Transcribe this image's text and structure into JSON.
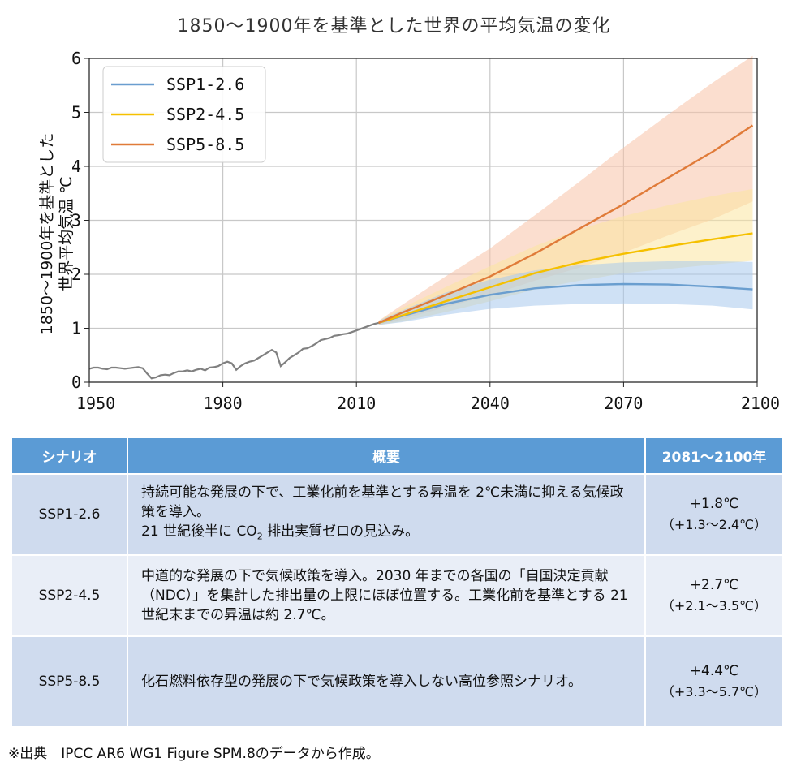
{
  "chart_data": {
    "type": "line",
    "title": "1850～1900年を基準とした世界の平均気温の変化",
    "ylabel_lines": [
      "1850～1900年を基準とした",
      "世界平均気温 ℃"
    ],
    "xlabel": "",
    "xlim": [
      1950,
      2100
    ],
    "ylim": [
      0,
      6
    ],
    "xticks": [
      1950,
      1980,
      2010,
      2040,
      2070,
      2100
    ],
    "yticks": [
      0,
      1,
      2,
      3,
      4,
      5,
      6
    ],
    "grid": true,
    "legend_position": "top-left",
    "historical": {
      "color": "#808080",
      "x": [
        1950,
        1951,
        1952,
        1953,
        1954,
        1955,
        1956,
        1957,
        1958,
        1959,
        1960,
        1961,
        1962,
        1963,
        1964,
        1965,
        1966,
        1967,
        1968,
        1969,
        1970,
        1971,
        1972,
        1973,
        1974,
        1975,
        1976,
        1977,
        1978,
        1979,
        1980,
        1981,
        1982,
        1983,
        1984,
        1985,
        1986,
        1987,
        1988,
        1989,
        1990,
        1991,
        1992,
        1993,
        1994,
        1995,
        1996,
        1997,
        1998,
        1999,
        2000,
        2001,
        2002,
        2003,
        2004,
        2005,
        2006,
        2007,
        2008,
        2009,
        2010,
        2011,
        2012,
        2013,
        2014,
        2015
      ],
      "y": [
        0.25,
        0.27,
        0.27,
        0.25,
        0.24,
        0.27,
        0.27,
        0.26,
        0.25,
        0.26,
        0.27,
        0.28,
        0.26,
        0.16,
        0.07,
        0.09,
        0.13,
        0.14,
        0.13,
        0.17,
        0.2,
        0.2,
        0.22,
        0.2,
        0.23,
        0.25,
        0.22,
        0.27,
        0.28,
        0.3,
        0.35,
        0.38,
        0.35,
        0.23,
        0.3,
        0.35,
        0.38,
        0.4,
        0.45,
        0.5,
        0.55,
        0.6,
        0.55,
        0.3,
        0.37,
        0.45,
        0.5,
        0.55,
        0.62,
        0.63,
        0.67,
        0.72,
        0.78,
        0.8,
        0.82,
        0.86,
        0.87,
        0.89,
        0.9,
        0.93,
        0.96,
        0.99,
        1.02,
        1.05,
        1.08,
        1.1
      ]
    },
    "x": [
      2015,
      2020,
      2030,
      2040,
      2050,
      2060,
      2070,
      2080,
      2090,
      2099
    ],
    "series": [
      {
        "name": "SSP1-2.6",
        "color": "#6a9ecf",
        "band_color": "#a8c8ec",
        "values": [
          1.1,
          1.22,
          1.45,
          1.62,
          1.74,
          1.8,
          1.82,
          1.81,
          1.77,
          1.72
        ],
        "low": [
          1.06,
          1.11,
          1.25,
          1.36,
          1.42,
          1.45,
          1.46,
          1.45,
          1.42,
          1.35
        ],
        "high": [
          1.14,
          1.32,
          1.66,
          1.9,
          2.07,
          2.17,
          2.22,
          2.24,
          2.24,
          2.23
        ]
      },
      {
        "name": "SSP2-4.5",
        "color": "#f5c000",
        "band_color": "#fbe5a0",
        "values": [
          1.1,
          1.23,
          1.5,
          1.76,
          2.02,
          2.22,
          2.38,
          2.52,
          2.65,
          2.76
        ],
        "low": [
          1.06,
          1.12,
          1.3,
          1.5,
          1.72,
          1.88,
          2.02,
          2.1,
          2.18,
          2.25
        ],
        "high": [
          1.14,
          1.37,
          1.76,
          2.15,
          2.52,
          2.83,
          3.08,
          3.28,
          3.45,
          3.58
        ]
      },
      {
        "name": "SSP5-8.5",
        "color": "#e07b39",
        "band_color": "#f7c2a8",
        "values": [
          1.1,
          1.28,
          1.61,
          1.96,
          2.38,
          2.84,
          3.3,
          3.79,
          4.27,
          4.76
        ],
        "low": [
          1.06,
          1.16,
          1.39,
          1.61,
          1.88,
          2.12,
          2.4,
          2.72,
          3.02,
          3.35
        ],
        "high": [
          1.14,
          1.42,
          1.96,
          2.48,
          3.09,
          3.71,
          4.35,
          4.96,
          5.55,
          6.05
        ]
      }
    ]
  },
  "table": {
    "headers": [
      "シナリオ",
      "概要",
      "2081～2100年"
    ],
    "rows": [
      {
        "name": "SSP1-2.6",
        "desc1": "持続可能な発展の下で、工業化前を基準とする昇温を 2℃未満に抑える気候政策を導入。",
        "desc2_pre": "21 世紀後半に CO",
        "desc2_sub": "2",
        "desc2_post": " 排出実質ゼロの見込み。",
        "value": "+1.8℃",
        "range": "（+1.3～2.4℃）"
      },
      {
        "name": "SSP2-4.5",
        "desc": "中道的な発展の下で気候政策を導入。2030 年までの各国の「自国決定貢献（NDC）」を集計した排出量の上限にほぼ位置する。工業化前を基準とする 21 世紀末までの昇温は約 2.7℃。",
        "value": "+2.7℃",
        "range": "（+2.1～3.5℃）"
      },
      {
        "name": "SSP5-8.5",
        "desc": "化石燃料依存型の発展の下で気候政策を導入しない高位参照シナリオ。",
        "value": "+4.4℃",
        "range": "（+3.3～5.7℃）"
      }
    ]
  },
  "footnote": "※出典　IPCC AR6 WG1 Figure SPM.8のデータから作成。"
}
